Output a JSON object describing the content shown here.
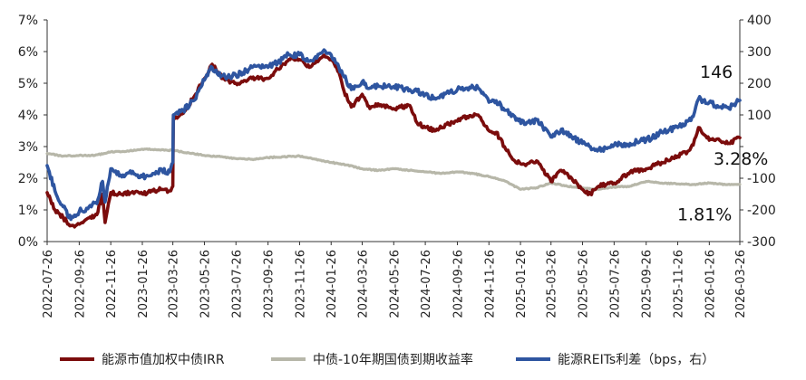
{
  "chart_data": {
    "type": "line",
    "dual_axis": true,
    "x_start": "2022-07-26",
    "x_end": "2026-03-26",
    "x_tick_labels": [
      "2022-07-26",
      "2022-09-26",
      "2022-11-26",
      "2023-01-26",
      "2023-03-26",
      "2023-05-26",
      "2023-07-26",
      "2023-09-26",
      "2023-11-26",
      "2024-01-26",
      "2024-03-26",
      "2024-05-26",
      "2024-07-26",
      "2024-09-26",
      "2024-11-26",
      "2025-01-26",
      "2025-03-26",
      "2025-05-26",
      "2025-07-26",
      "2025-09-26",
      "2025-11-26",
      "2026-01-26",
      "2026-03-26"
    ],
    "y_left": {
      "ticks": [
        "0%",
        "1%",
        "2%",
        "3%",
        "4%",
        "5%",
        "6%",
        "7%"
      ],
      "min": 0,
      "max": 7
    },
    "y_right": {
      "ticks": [
        "-300",
        "-200",
        "-100",
        "",
        "100",
        "200",
        "300",
        "400"
      ],
      "min": -300,
      "max": 400
    },
    "series": [
      {
        "name": "能源市值加权中债IRR",
        "axis": "left",
        "color": "#7b0c0c",
        "x": [
          "2022-07-26",
          "2022-08-10",
          "2022-08-26",
          "2022-09-10",
          "2022-09-26",
          "2022-10-15",
          "2022-10-30",
          "2022-11-10",
          "2022-11-15",
          "2022-11-26",
          "2022-12-15",
          "2023-01-05",
          "2023-01-26",
          "2023-02-15",
          "2023-03-05",
          "2023-03-20",
          "2023-03-26",
          "2023-03-27",
          "2023-04-15",
          "2023-05-05",
          "2023-05-26",
          "2023-06-10",
          "2023-06-20",
          "2023-07-05",
          "2023-07-26",
          "2023-08-26",
          "2023-09-26",
          "2023-10-15",
          "2023-11-05",
          "2023-11-26",
          "2023-12-15",
          "2024-01-10",
          "2024-01-26",
          "2024-02-10",
          "2024-02-20",
          "2024-03-05",
          "2024-03-26",
          "2024-04-10",
          "2024-04-26",
          "2024-05-26",
          "2024-06-26",
          "2024-07-10",
          "2024-07-26",
          "2024-08-15",
          "2024-09-05",
          "2024-09-26",
          "2024-10-15",
          "2024-11-05",
          "2024-11-26",
          "2024-12-10",
          "2024-12-26",
          "2025-01-15",
          "2025-02-05",
          "2025-02-26",
          "2025-03-26",
          "2025-04-15",
          "2025-05-05",
          "2025-05-26",
          "2025-06-10",
          "2025-06-26",
          "2025-07-10",
          "2025-07-26",
          "2025-08-26",
          "2025-09-26",
          "2025-10-26",
          "2025-11-26",
          "2025-12-15",
          "2025-12-26",
          "2026-01-05",
          "2026-01-26",
          "2026-02-15",
          "2026-03-05",
          "2026-03-26"
        ],
        "values": [
          1.55,
          1.0,
          0.75,
          0.5,
          0.55,
          0.75,
          0.85,
          1.5,
          0.6,
          1.55,
          1.5,
          1.55,
          1.5,
          1.6,
          1.65,
          1.6,
          1.75,
          3.9,
          4.05,
          4.55,
          5.15,
          5.6,
          5.35,
          5.1,
          5.0,
          5.15,
          5.15,
          5.45,
          5.75,
          5.75,
          5.5,
          5.85,
          5.75,
          5.35,
          4.75,
          4.25,
          4.65,
          4.2,
          4.35,
          4.2,
          4.3,
          3.75,
          3.6,
          3.5,
          3.7,
          3.8,
          3.95,
          4.0,
          3.5,
          3.45,
          3.0,
          2.55,
          2.4,
          2.55,
          1.9,
          2.25,
          2.0,
          1.65,
          1.5,
          1.75,
          1.8,
          1.85,
          2.2,
          2.3,
          2.5,
          2.7,
          2.85,
          3.05,
          3.6,
          3.2,
          3.2,
          3.1,
          3.28
        ]
      },
      {
        "name": "中债-10年期国债到期收益率",
        "axis": "left",
        "color": "#b7b7a9",
        "x": [
          "2022-07-26",
          "2022-08-26",
          "2022-09-26",
          "2022-10-26",
          "2022-11-26",
          "2022-12-26",
          "2023-01-26",
          "2023-02-26",
          "2023-03-26",
          "2023-04-26",
          "2023-05-26",
          "2023-06-26",
          "2023-07-26",
          "2023-08-26",
          "2023-09-26",
          "2023-10-26",
          "2023-11-26",
          "2023-12-26",
          "2024-01-26",
          "2024-02-26",
          "2024-03-26",
          "2024-04-26",
          "2024-05-26",
          "2024-06-26",
          "2024-07-26",
          "2024-08-26",
          "2024-09-26",
          "2024-10-26",
          "2024-11-26",
          "2024-12-26",
          "2025-01-26",
          "2025-02-26",
          "2025-03-26",
          "2025-04-26",
          "2025-05-26",
          "2025-06-26",
          "2025-07-26",
          "2025-08-26",
          "2025-09-26",
          "2025-10-26",
          "2025-11-26",
          "2025-12-26",
          "2026-01-26",
          "2026-02-26",
          "2026-03-26"
        ],
        "values": [
          2.78,
          2.7,
          2.72,
          2.72,
          2.83,
          2.85,
          2.92,
          2.9,
          2.88,
          2.8,
          2.72,
          2.68,
          2.62,
          2.6,
          2.65,
          2.68,
          2.7,
          2.6,
          2.5,
          2.42,
          2.3,
          2.25,
          2.3,
          2.25,
          2.2,
          2.15,
          2.2,
          2.15,
          2.05,
          1.92,
          1.65,
          1.7,
          1.85,
          1.75,
          1.7,
          1.65,
          1.72,
          1.75,
          1.9,
          1.85,
          1.82,
          1.8,
          1.85,
          1.8,
          1.81
        ]
      },
      {
        "name": "能源REITs利差（bps，右）",
        "axis": "right",
        "color": "#2e55a0",
        "x": [
          "2022-07-26",
          "2022-08-10",
          "2022-08-26",
          "2022-09-10",
          "2022-09-26",
          "2022-10-15",
          "2022-10-30",
          "2022-11-10",
          "2022-11-15",
          "2022-11-26",
          "2022-12-15",
          "2023-01-05",
          "2023-01-26",
          "2023-02-15",
          "2023-03-05",
          "2023-03-20",
          "2023-03-26",
          "2023-03-27",
          "2023-04-15",
          "2023-05-05",
          "2023-05-26",
          "2023-06-10",
          "2023-06-20",
          "2023-07-05",
          "2023-07-26",
          "2023-08-26",
          "2023-09-26",
          "2023-10-15",
          "2023-11-05",
          "2023-11-26",
          "2023-12-15",
          "2024-01-10",
          "2024-01-26",
          "2024-02-10",
          "2024-02-20",
          "2024-03-05",
          "2024-03-26",
          "2024-04-10",
          "2024-04-26",
          "2024-05-26",
          "2024-06-26",
          "2024-07-10",
          "2024-07-26",
          "2024-08-15",
          "2024-09-05",
          "2024-09-26",
          "2024-10-15",
          "2024-11-05",
          "2024-11-26",
          "2024-12-10",
          "2024-12-26",
          "2025-01-15",
          "2025-02-05",
          "2025-02-26",
          "2025-03-26",
          "2025-04-15",
          "2025-05-05",
          "2025-05-26",
          "2025-06-10",
          "2025-06-26",
          "2025-07-10",
          "2025-07-26",
          "2025-08-26",
          "2025-09-26",
          "2025-10-26",
          "2025-11-26",
          "2025-12-15",
          "2025-12-26",
          "2026-01-05",
          "2026-01-26",
          "2026-02-15",
          "2026-03-05",
          "2026-03-26"
        ],
        "values": [
          -60,
          -140,
          -190,
          -230,
          -205,
          -190,
          -180,
          -110,
          -175,
          -70,
          -90,
          -85,
          -95,
          -85,
          -75,
          -80,
          -50,
          100,
          115,
          145,
          210,
          250,
          230,
          220,
          225,
          250,
          250,
          265,
          290,
          290,
          270,
          300,
          290,
          250,
          220,
          180,
          205,
          185,
          190,
          190,
          180,
          175,
          165,
          150,
          170,
          180,
          185,
          185,
          140,
          145,
          115,
          95,
          70,
          85,
          30,
          55,
          30,
          10,
          0,
          -10,
          -5,
          5,
          10,
          20,
          45,
          60,
          80,
          95,
          150,
          140,
          125,
          120,
          146
        ]
      }
    ],
    "annotations": [
      {
        "text": "146",
        "series": 2
      },
      {
        "text": "3.28%",
        "series": 0
      },
      {
        "text": "1.81%",
        "series": 1
      }
    ],
    "legend_position": "bottom",
    "grid": false
  }
}
